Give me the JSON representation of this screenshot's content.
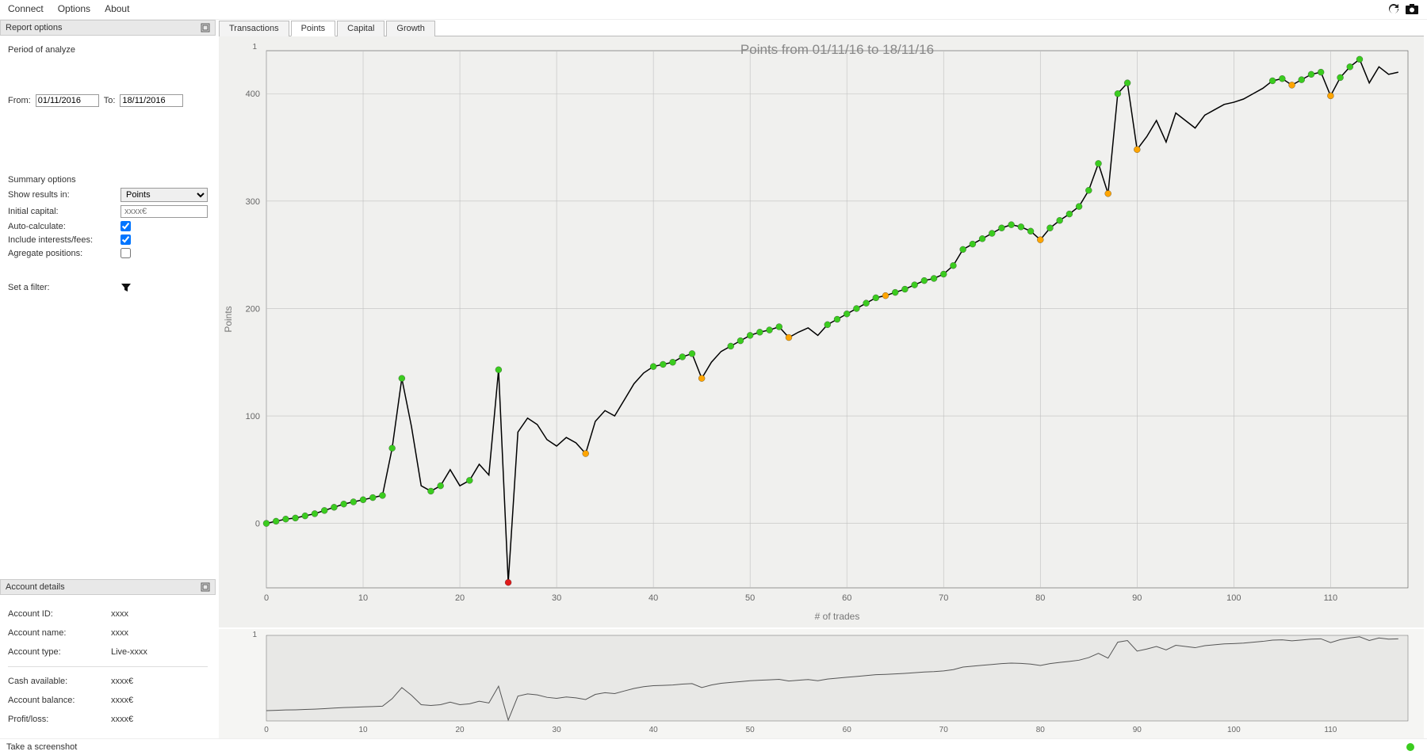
{
  "menubar": {
    "connect": "Connect",
    "options": "Options",
    "about": "About"
  },
  "sidebar": {
    "report_options_title": "Report options",
    "period_label": "Period of analyze",
    "from_label": "From:",
    "from_value": "01/11/2016",
    "to_label": "To:",
    "to_value": "18/11/2016",
    "summary_label": "Summary options",
    "show_results_label": "Show results in:",
    "show_results_value": "Points",
    "initial_capital_label": "Initial capital:",
    "initial_capital_placeholder": "xxxx€",
    "auto_calc_label": "Auto-calculate:",
    "auto_calc_checked": true,
    "include_fees_label": "Include interests/fees:",
    "include_fees_checked": true,
    "aggregate_label": "Agregate positions:",
    "aggregate_checked": false,
    "filter_label": "Set a filter:",
    "account_details_title": "Account details",
    "account_id_label": "Account ID:",
    "account_id_value": "xxxx",
    "account_name_label": "Account name:",
    "account_name_value": "xxxx",
    "account_type_label": "Account type:",
    "account_type_value": "Live-xxxx",
    "cash_label": "Cash available:",
    "cash_value": "xxxx€",
    "balance_label": "Account balance:",
    "balance_value": "xxxx€",
    "pnl_label": "Profit/loss:",
    "pnl_value": "xxxx€"
  },
  "tabs": {
    "transactions": "Transactions",
    "points": "Points",
    "capital": "Capital",
    "growth": "Growth",
    "active": "points"
  },
  "chart": {
    "title": "Points from 01/11/16 to 18/11/16",
    "ylabel": "Points",
    "xlabel": "# of trades",
    "background": "#f0f0ee",
    "plot_bg": "#f0f0ee",
    "grid_color": "#bfbfbf",
    "axis_color": "#555555",
    "line_color": "#000000",
    "line_width": 1.5,
    "title_color": "#888888",
    "title_fontsize": 17,
    "label_color": "#777777",
    "label_fontsize": 12,
    "tick_color": "#666666",
    "tick_fontsize": 11,
    "marker_r": 4,
    "colors": {
      "green": "#3bcc1f",
      "orange": "#ffa500",
      "red": "#e01b1b"
    },
    "xlim": [
      0,
      118
    ],
    "xtick_step": 10,
    "ylim": [
      -60,
      440
    ],
    "yticks": [
      0,
      100,
      200,
      300,
      400
    ],
    "data": [
      {
        "x": 0,
        "y": 0,
        "m": "green"
      },
      {
        "x": 1,
        "y": 2,
        "m": "green"
      },
      {
        "x": 2,
        "y": 4,
        "m": "green"
      },
      {
        "x": 3,
        "y": 5,
        "m": "green"
      },
      {
        "x": 4,
        "y": 7,
        "m": "green"
      },
      {
        "x": 5,
        "y": 9,
        "m": "green"
      },
      {
        "x": 6,
        "y": 12,
        "m": "green"
      },
      {
        "x": 7,
        "y": 15,
        "m": "green"
      },
      {
        "x": 8,
        "y": 18,
        "m": "green"
      },
      {
        "x": 9,
        "y": 20,
        "m": "green"
      },
      {
        "x": 10,
        "y": 22,
        "m": "green"
      },
      {
        "x": 11,
        "y": 24,
        "m": "green"
      },
      {
        "x": 12,
        "y": 26,
        "m": "green"
      },
      {
        "x": 13,
        "y": 70,
        "m": "green"
      },
      {
        "x": 14,
        "y": 135,
        "m": "green"
      },
      {
        "x": 15,
        "y": 90
      },
      {
        "x": 16,
        "y": 35
      },
      {
        "x": 17,
        "y": 30,
        "m": "green"
      },
      {
        "x": 18,
        "y": 35,
        "m": "green"
      },
      {
        "x": 19,
        "y": 50
      },
      {
        "x": 20,
        "y": 35
      },
      {
        "x": 21,
        "y": 40,
        "m": "green"
      },
      {
        "x": 22,
        "y": 55
      },
      {
        "x": 23,
        "y": 45
      },
      {
        "x": 24,
        "y": 143,
        "m": "green"
      },
      {
        "x": 25,
        "y": -55,
        "m": "red"
      },
      {
        "x": 26,
        "y": 85
      },
      {
        "x": 27,
        "y": 98
      },
      {
        "x": 28,
        "y": 92
      },
      {
        "x": 29,
        "y": 78
      },
      {
        "x": 30,
        "y": 72
      },
      {
        "x": 31,
        "y": 80
      },
      {
        "x": 32,
        "y": 75
      },
      {
        "x": 33,
        "y": 65,
        "m": "orange"
      },
      {
        "x": 34,
        "y": 95
      },
      {
        "x": 35,
        "y": 105
      },
      {
        "x": 36,
        "y": 100
      },
      {
        "x": 37,
        "y": 115
      },
      {
        "x": 38,
        "y": 130
      },
      {
        "x": 39,
        "y": 140
      },
      {
        "x": 40,
        "y": 146,
        "m": "green"
      },
      {
        "x": 41,
        "y": 148,
        "m": "green"
      },
      {
        "x": 42,
        "y": 150,
        "m": "green"
      },
      {
        "x": 43,
        "y": 155,
        "m": "green"
      },
      {
        "x": 44,
        "y": 158,
        "m": "green"
      },
      {
        "x": 45,
        "y": 135,
        "m": "orange"
      },
      {
        "x": 46,
        "y": 150
      },
      {
        "x": 47,
        "y": 160
      },
      {
        "x": 48,
        "y": 165,
        "m": "green"
      },
      {
        "x": 49,
        "y": 170,
        "m": "green"
      },
      {
        "x": 50,
        "y": 175,
        "m": "green"
      },
      {
        "x": 51,
        "y": 178,
        "m": "green"
      },
      {
        "x": 52,
        "y": 180,
        "m": "green"
      },
      {
        "x": 53,
        "y": 183,
        "m": "green"
      },
      {
        "x": 54,
        "y": 173,
        "m": "orange"
      },
      {
        "x": 55,
        "y": 178
      },
      {
        "x": 56,
        "y": 182
      },
      {
        "x": 57,
        "y": 175
      },
      {
        "x": 58,
        "y": 185,
        "m": "green"
      },
      {
        "x": 59,
        "y": 190,
        "m": "green"
      },
      {
        "x": 60,
        "y": 195,
        "m": "green"
      },
      {
        "x": 61,
        "y": 200,
        "m": "green"
      },
      {
        "x": 62,
        "y": 205,
        "m": "green"
      },
      {
        "x": 63,
        "y": 210,
        "m": "green"
      },
      {
        "x": 64,
        "y": 212,
        "m": "orange"
      },
      {
        "x": 65,
        "y": 215,
        "m": "green"
      },
      {
        "x": 66,
        "y": 218,
        "m": "green"
      },
      {
        "x": 67,
        "y": 222,
        "m": "green"
      },
      {
        "x": 68,
        "y": 226,
        "m": "green"
      },
      {
        "x": 69,
        "y": 228,
        "m": "green"
      },
      {
        "x": 70,
        "y": 232,
        "m": "green"
      },
      {
        "x": 71,
        "y": 240,
        "m": "green"
      },
      {
        "x": 72,
        "y": 255,
        "m": "green"
      },
      {
        "x": 73,
        "y": 260,
        "m": "green"
      },
      {
        "x": 74,
        "y": 265,
        "m": "green"
      },
      {
        "x": 75,
        "y": 270,
        "m": "green"
      },
      {
        "x": 76,
        "y": 275,
        "m": "green"
      },
      {
        "x": 77,
        "y": 278,
        "m": "green"
      },
      {
        "x": 78,
        "y": 276,
        "m": "green"
      },
      {
        "x": 79,
        "y": 272,
        "m": "green"
      },
      {
        "x": 80,
        "y": 264,
        "m": "orange"
      },
      {
        "x": 81,
        "y": 275,
        "m": "green"
      },
      {
        "x": 82,
        "y": 282,
        "m": "green"
      },
      {
        "x": 83,
        "y": 288,
        "m": "green"
      },
      {
        "x": 84,
        "y": 295,
        "m": "green"
      },
      {
        "x": 85,
        "y": 310,
        "m": "green"
      },
      {
        "x": 86,
        "y": 335,
        "m": "green"
      },
      {
        "x": 87,
        "y": 307,
        "m": "orange"
      },
      {
        "x": 88,
        "y": 400,
        "m": "green"
      },
      {
        "x": 89,
        "y": 410,
        "m": "green"
      },
      {
        "x": 90,
        "y": 348,
        "m": "orange"
      },
      {
        "x": 91,
        "y": 360
      },
      {
        "x": 92,
        "y": 375
      },
      {
        "x": 93,
        "y": 355
      },
      {
        "x": 94,
        "y": 382
      },
      {
        "x": 95,
        "y": 375
      },
      {
        "x": 96,
        "y": 368
      },
      {
        "x": 97,
        "y": 380
      },
      {
        "x": 98,
        "y": 385
      },
      {
        "x": 99,
        "y": 390
      },
      {
        "x": 100,
        "y": 392
      },
      {
        "x": 101,
        "y": 395
      },
      {
        "x": 102,
        "y": 400
      },
      {
        "x": 103,
        "y": 405
      },
      {
        "x": 104,
        "y": 412,
        "m": "green"
      },
      {
        "x": 105,
        "y": 414,
        "m": "green"
      },
      {
        "x": 106,
        "y": 408,
        "m": "orange"
      },
      {
        "x": 107,
        "y": 413,
        "m": "green"
      },
      {
        "x": 108,
        "y": 418,
        "m": "green"
      },
      {
        "x": 109,
        "y": 420,
        "m": "green"
      },
      {
        "x": 110,
        "y": 398,
        "m": "orange"
      },
      {
        "x": 111,
        "y": 415,
        "m": "green"
      },
      {
        "x": 112,
        "y": 425,
        "m": "green"
      },
      {
        "x": 113,
        "y": 432,
        "m": "green"
      },
      {
        "x": 114,
        "y": 410
      },
      {
        "x": 115,
        "y": 425
      },
      {
        "x": 116,
        "y": 418
      },
      {
        "x": 117,
        "y": 420
      }
    ]
  },
  "minichart": {
    "background": "#e8e8e6",
    "grid_color": "#cfcfcf",
    "axis_color": "#666",
    "line_color": "#555",
    "line_width": 1,
    "xlim": [
      0,
      118
    ],
    "xtick_step": 10,
    "ylim": [
      -60,
      440
    ]
  },
  "status": {
    "text": "Take a screenshot",
    "dot_color": "#3bcc1f"
  }
}
